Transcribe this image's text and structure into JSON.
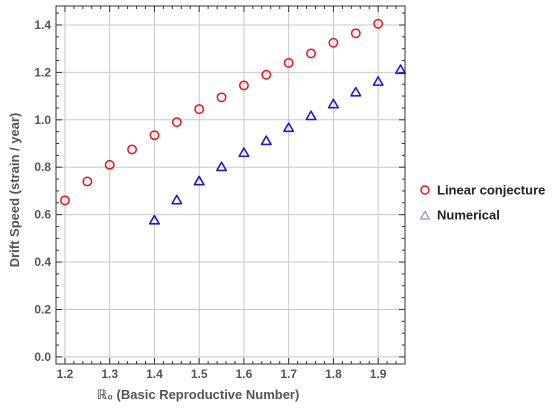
{
  "chart_data": {
    "type": "scatter",
    "title": "",
    "xlabel": "ℝ₀ (Basic Reproductive Number)",
    "ylabel": "Drift  Speed (strain / year)",
    "xlim": [
      1.18,
      1.96
    ],
    "ylim": [
      -0.03,
      1.48
    ],
    "x_ticks": [
      1.2,
      1.3,
      1.4,
      1.5,
      1.6,
      1.7,
      1.8,
      1.9
    ],
    "x_tick_labels": [
      "1.2",
      "1.3",
      "1.4",
      "1.5",
      "1.6",
      "1.7",
      "1.8",
      "1.9"
    ],
    "y_ticks": [
      0.0,
      0.2,
      0.4,
      0.6,
      0.8,
      1.0,
      1.2,
      1.4
    ],
    "y_tick_labels": [
      "0.0",
      "0.2",
      "0.4",
      "0.6",
      "0.8",
      "1.0",
      "1.2",
      "1.4"
    ],
    "grid": true,
    "legend_position": "right",
    "series": [
      {
        "name": "Linear conjecture",
        "marker": "circle",
        "color": "#e8141c",
        "x": [
          1.2,
          1.25,
          1.3,
          1.35,
          1.4,
          1.45,
          1.5,
          1.55,
          1.6,
          1.65,
          1.7,
          1.75,
          1.8,
          1.85,
          1.9
        ],
        "y": [
          0.66,
          0.74,
          0.81,
          0.875,
          0.935,
          0.99,
          1.045,
          1.095,
          1.145,
          1.19,
          1.24,
          1.28,
          1.325,
          1.365,
          1.405
        ]
      },
      {
        "name": "Numerical",
        "marker": "triangle",
        "color": "#1c1ccc",
        "x": [
          1.4,
          1.45,
          1.5,
          1.55,
          1.6,
          1.65,
          1.7,
          1.75,
          1.8,
          1.85,
          1.9,
          1.95
        ],
        "y": [
          0.575,
          0.66,
          0.74,
          0.8,
          0.86,
          0.91,
          0.965,
          1.015,
          1.065,
          1.115,
          1.16,
          1.21
        ]
      }
    ]
  }
}
